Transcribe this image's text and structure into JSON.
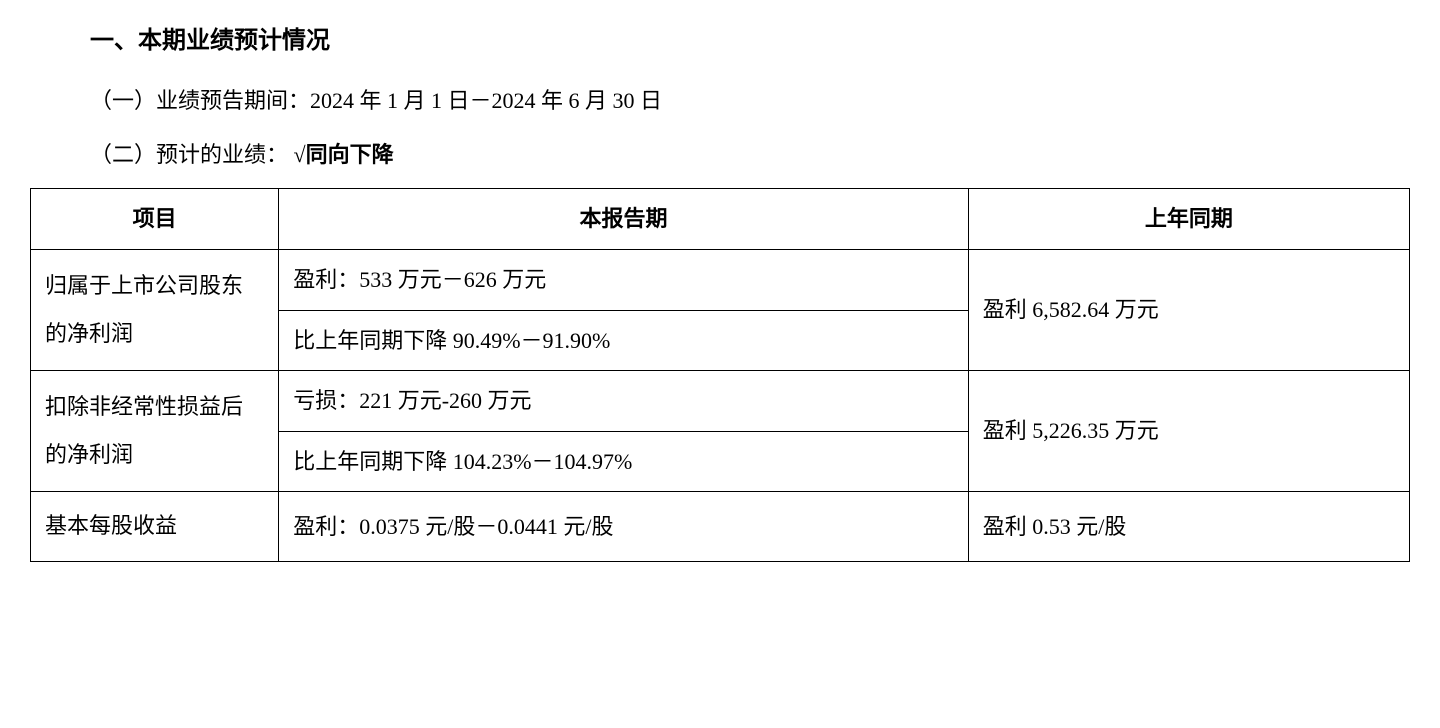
{
  "heading": "一、本期业绩预计情况",
  "period_line": "（一）业绩预告期间：2024 年 1 月 1 日－2024 年 6 月 30 日",
  "forecast_prefix": "（二）预计的业绩：",
  "forecast_check": "√同向下降",
  "table": {
    "headers": {
      "item": "项目",
      "current": "本报告期",
      "prior": "上年同期"
    },
    "rows": [
      {
        "label": "归属于上市公司股东的净利润",
        "current_a": "盈利：533 万元－626 万元",
        "current_b": "比上年同期下降 90.49%－91.90%",
        "prior": "盈利 6,582.64 万元"
      },
      {
        "label": "扣除非经常性损益后的净利润",
        "current_a": "亏损：221 万元-260 万元",
        "current_b": "比上年同期下降 104.23%－104.97%",
        "prior": "盈利 5,226.35 万元"
      },
      {
        "label": "基本每股收益",
        "current": "盈利：0.0375 元/股－0.0441 元/股",
        "prior": "盈利 0.53 元/股"
      }
    ]
  },
  "colors": {
    "text": "#000000",
    "background": "#ffffff",
    "border": "#000000"
  },
  "typography": {
    "body_fontsize": 22,
    "heading_fontsize": 24,
    "font_family": "SimSun"
  },
  "layout": {
    "col_widths_pct": [
      18,
      50,
      32
    ]
  }
}
